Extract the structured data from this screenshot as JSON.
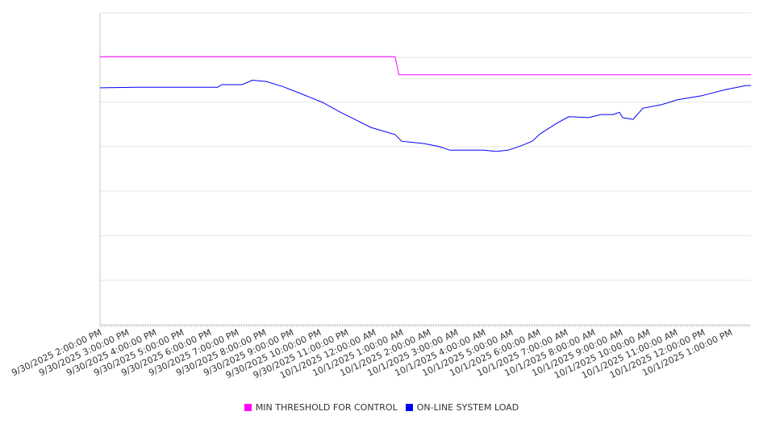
{
  "chart_data": {
    "type": "line",
    "title": "",
    "xlabel": "",
    "ylabel": "",
    "x_units": "hours since 9/30/2025 2:00:00 PM",
    "xlim": [
      0,
      23.74
    ],
    "ylim": [
      0,
      70
    ],
    "y_gridlines": [
      0,
      10,
      20,
      30,
      40,
      50,
      60,
      70
    ],
    "y_tick_labels_shown": false,
    "grid": true,
    "legend_position": "bottom",
    "x_tick_labels": [
      "9/30/2025 2:00:00 PM",
      "9/30/2025 3:00:00 PM",
      "9/30/2025 4:00:00 PM",
      "9/30/2025 5:00:00 PM",
      "9/30/2025 6:00:00 PM",
      "9/30/2025 7:00:00 PM",
      "9/30/2025 8:00:00 PM",
      "9/30/2025 9:00:00 PM",
      "9/30/2025 10:00:00 PM",
      "9/30/2025 11:00:00 PM",
      "10/1/2025 12:00:00 AM",
      "10/1/2025 1:00:00 AM",
      "10/1/2025 2:00:00 AM",
      "10/1/2025 3:00:00 AM",
      "10/1/2025 4:00:00 AM",
      "10/1/2025 5:00:00 AM",
      "10/1/2025 6:00:00 AM",
      "10/1/2025 7:00:00 AM",
      "10/1/2025 8:00:00 AM",
      "10/1/2025 9:00:00 AM",
      "10/1/2025 10:00:00 AM",
      "10/1/2025 11:00:00 AM",
      "10/1/2025 12:00:00 PM",
      "10/1/2025 1:00:00 PM"
    ],
    "series": [
      {
        "name": "MIN THRESHOLD FOR CONTROL",
        "color": "#ff00ff",
        "x": [
          0,
          10.76,
          10.9,
          23.74
        ],
        "y": [
          60.2,
          60.2,
          56.1,
          56.1
        ]
      },
      {
        "name": "ON-LINE SYSTEM LOAD",
        "color": "#0000ff",
        "x": [
          0,
          1.35,
          3.12,
          4.29,
          4.44,
          5.18,
          5.56,
          6.06,
          6.65,
          7.24,
          8.12,
          8.71,
          9.29,
          9.88,
          10.76,
          11.0,
          11.79,
          12.38,
          12.76,
          14.0,
          14.44,
          14.88,
          15.32,
          15.76,
          16.06,
          16.65,
          17.09,
          17.82,
          18.26,
          18.71,
          18.94,
          19.06,
          19.44,
          19.79,
          20.47,
          21.06,
          21.94,
          22.82,
          23.56,
          23.74
        ],
        "y": [
          53.2,
          53.3,
          53.3,
          53.3,
          53.9,
          53.9,
          54.9,
          54.6,
          53.5,
          52.1,
          49.9,
          47.9,
          46.1,
          44.3,
          42.7,
          41.2,
          40.7,
          40.0,
          39.2,
          39.2,
          38.9,
          39.2,
          40.1,
          41.2,
          42.9,
          45.2,
          46.7,
          46.5,
          47.2,
          47.2,
          47.7,
          46.5,
          46.1,
          48.6,
          49.4,
          50.5,
          51.4,
          52.8,
          53.7,
          53.7
        ]
      }
    ]
  }
}
